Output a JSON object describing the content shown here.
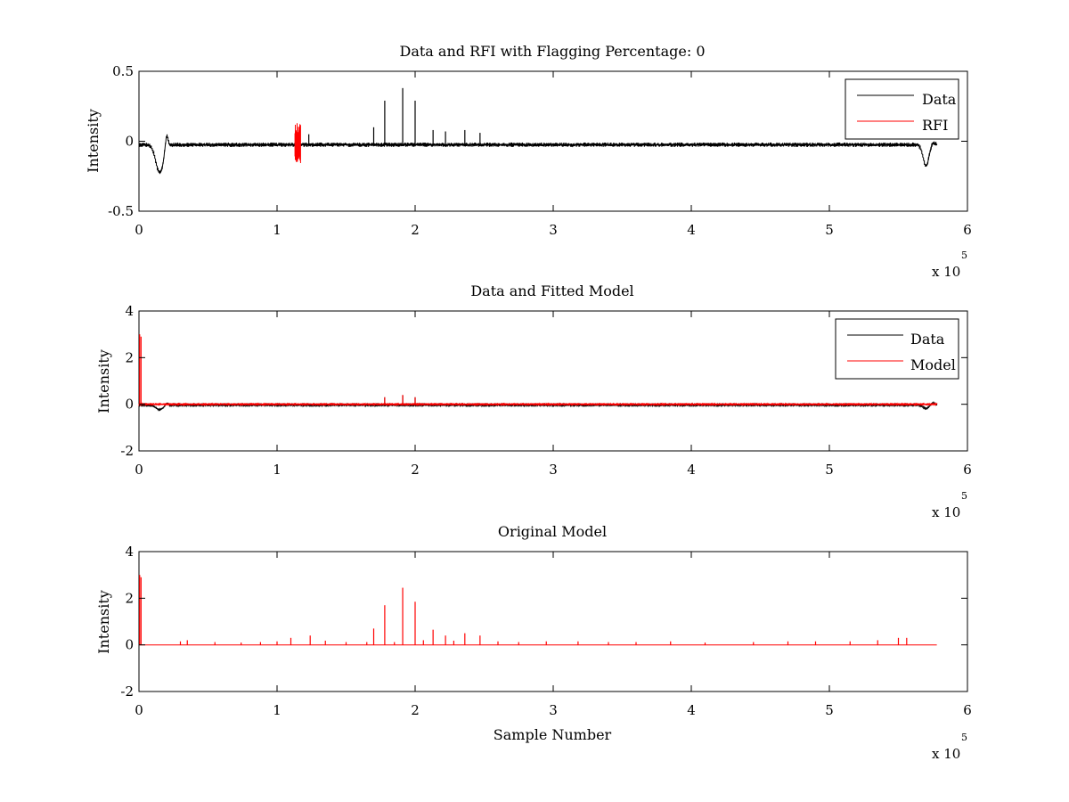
{
  "chart_data": [
    {
      "type": "line",
      "title": "Data and RFI with Flagging Percentage: 0",
      "xlabel": "",
      "ylabel": "Intensity",
      "xlim": [
        0,
        600000
      ],
      "ylim": [
        -0.5,
        0.5
      ],
      "x_ticks": [
        0,
        1,
        2,
        3,
        4,
        5,
        6
      ],
      "y_ticks": [
        "0.5",
        "0",
        "-0.5"
      ],
      "y_tick_values": [
        0.5,
        0,
        -0.5
      ],
      "x_multiplier": "x 10",
      "x_exponent": "5",
      "legend": {
        "position": "top-right",
        "entries": [
          "Data",
          "RFI"
        ]
      },
      "series": [
        {
          "name": "Data",
          "color": "#000000",
          "baseline": -0.025,
          "noise": 0.012,
          "dips": [
            [
              15000,
              -0.2,
              4000
            ],
            [
              570000,
              -0.15,
              3000
            ]
          ],
          "bumps": [
            [
              20000,
              0.1,
              1500
            ],
            [
              575000,
              0.02,
              2000
            ]
          ],
          "spikes": [
            [
              116000,
              0.06
            ],
            [
              123000,
              0.05
            ],
            [
              170000,
              0.1
            ],
            [
              178000,
              0.29
            ],
            [
              191000,
              0.38
            ],
            [
              200000,
              0.29
            ],
            [
              213000,
              0.08
            ],
            [
              222000,
              0.07
            ],
            [
              236000,
              0.08
            ],
            [
              247000,
              0.06
            ]
          ]
        },
        {
          "name": "RFI",
          "color": "#ff0000",
          "segments": [
            [
              113000,
              117000,
              0.13,
              -0.16
            ]
          ]
        }
      ]
    },
    {
      "type": "line",
      "title": "Data and Fitted Model",
      "xlabel": "",
      "ylabel": "Intensity",
      "xlim": [
        0,
        600000
      ],
      "ylim": [
        -2,
        4
      ],
      "x_ticks": [
        0,
        1,
        2,
        3,
        4,
        5,
        6
      ],
      "y_ticks": [
        "4",
        "2",
        "0",
        "-2"
      ],
      "y_tick_values": [
        4,
        2,
        0,
        -2
      ],
      "x_multiplier": "x 10",
      "x_exponent": "5",
      "legend": {
        "position": "top-right",
        "entries": [
          "Data",
          "Model"
        ]
      },
      "series": [
        {
          "name": "Data",
          "color": "#000000",
          "baseline": -0.03,
          "noise": 0.03,
          "dips": [
            [
              15000,
              -0.2,
              4000
            ],
            [
              570000,
              -0.15,
              3000
            ]
          ],
          "bumps": [
            [
              20000,
              0.1,
              1500
            ],
            [
              575000,
              0.1,
              2000
            ]
          ],
          "spikes": [
            [
              178000,
              0.3
            ],
            [
              191000,
              0.38
            ],
            [
              200000,
              0.3
            ]
          ]
        },
        {
          "name": "Model",
          "color": "#ff0000",
          "baseline": 0.0,
          "noise": 0.02,
          "spikes": [
            [
              500,
              3.0
            ],
            [
              1500,
              2.9
            ],
            [
              178000,
              0.3
            ],
            [
              191000,
              0.4
            ],
            [
              200000,
              0.3
            ]
          ]
        }
      ]
    },
    {
      "type": "line",
      "title": "Original Model",
      "xlabel": "Sample Number",
      "ylabel": "Intensity",
      "xlim": [
        0,
        600000
      ],
      "ylim": [
        -2,
        4
      ],
      "x_ticks": [
        0,
        1,
        2,
        3,
        4,
        5,
        6
      ],
      "y_ticks": [
        "4",
        "2",
        "0",
        "-2"
      ],
      "y_tick_values": [
        4,
        2,
        0,
        -2
      ],
      "x_multiplier": "x 10",
      "x_exponent": "5",
      "series": [
        {
          "name": "Model",
          "color": "#ff0000",
          "baseline": 0.0,
          "noise": 0.0,
          "spikes": [
            [
              500,
              3.0
            ],
            [
              1500,
              2.9
            ],
            [
              30000,
              0.15
            ],
            [
              35000,
              0.2
            ],
            [
              55000,
              0.12
            ],
            [
              74000,
              0.1
            ],
            [
              88000,
              0.12
            ],
            [
              100000,
              0.15
            ],
            [
              110000,
              0.3
            ],
            [
              124000,
              0.4
            ],
            [
              135000,
              0.18
            ],
            [
              150000,
              0.12
            ],
            [
              165000,
              0.12
            ],
            [
              170000,
              0.7
            ],
            [
              178000,
              1.7
            ],
            [
              185000,
              0.12
            ],
            [
              191000,
              2.45
            ],
            [
              200000,
              1.85
            ],
            [
              206000,
              0.2
            ],
            [
              213000,
              0.65
            ],
            [
              222000,
              0.4
            ],
            [
              228000,
              0.18
            ],
            [
              236000,
              0.5
            ],
            [
              247000,
              0.4
            ],
            [
              260000,
              0.15
            ],
            [
              275000,
              0.12
            ],
            [
              295000,
              0.15
            ],
            [
              318000,
              0.15
            ],
            [
              340000,
              0.12
            ],
            [
              360000,
              0.12
            ],
            [
              385000,
              0.15
            ],
            [
              410000,
              0.1
            ],
            [
              445000,
              0.12
            ],
            [
              470000,
              0.15
            ],
            [
              490000,
              0.15
            ],
            [
              515000,
              0.15
            ],
            [
              535000,
              0.2
            ],
            [
              550000,
              0.3
            ],
            [
              556000,
              0.3
            ]
          ]
        }
      ]
    }
  ]
}
